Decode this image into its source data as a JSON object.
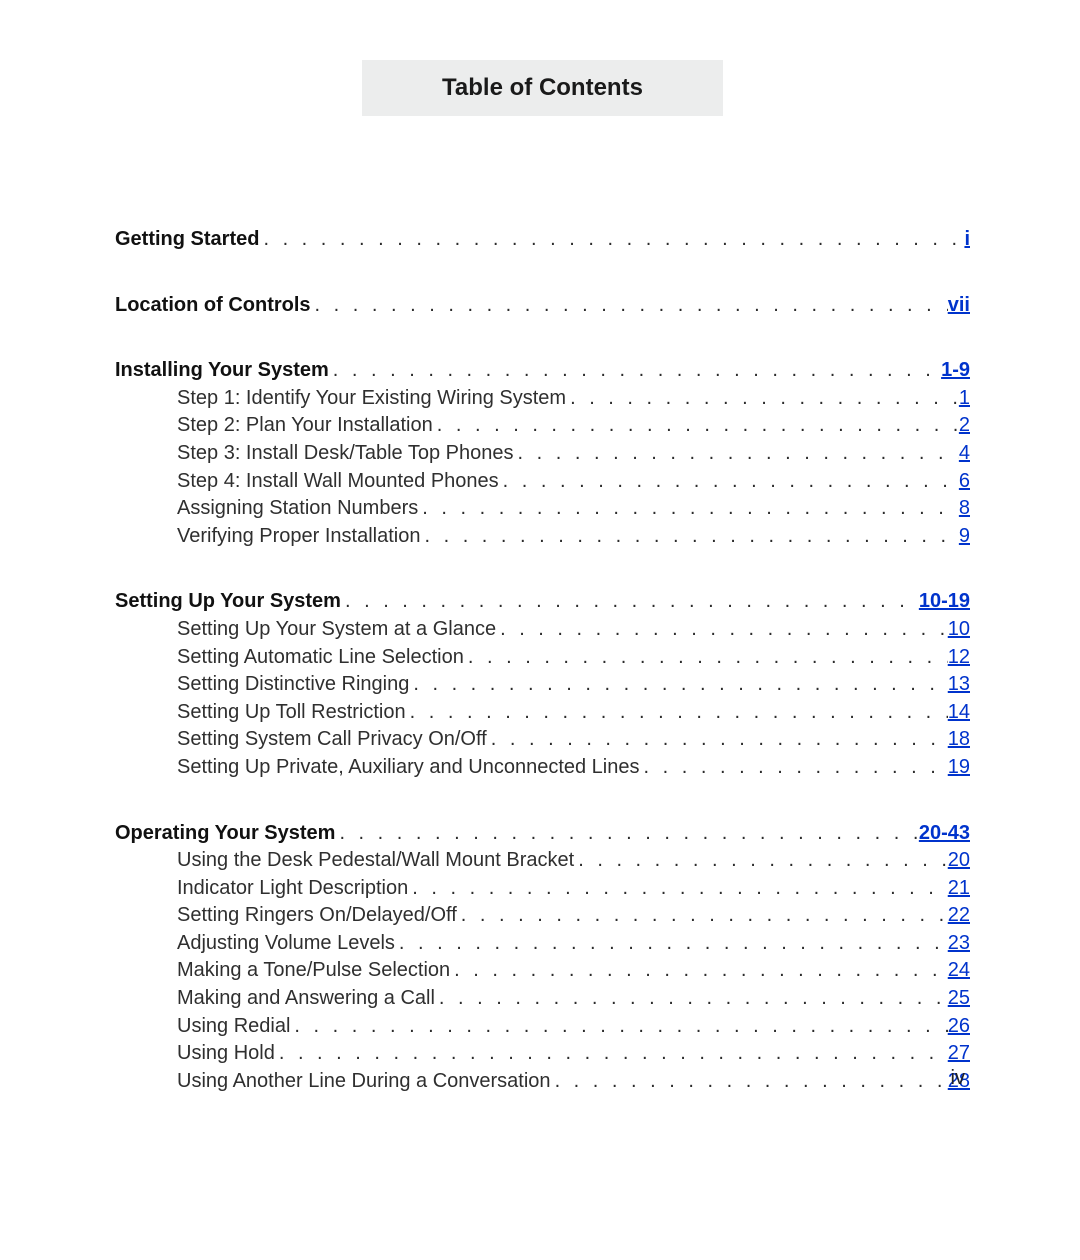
{
  "title": "Table of Contents",
  "page_number": "iv",
  "sections": [
    {
      "head": {
        "label": "Getting Started",
        "page": "i"
      },
      "items": []
    },
    {
      "head": {
        "label": "Location of Controls",
        "page": "vii"
      },
      "items": []
    },
    {
      "head": {
        "label": "Installing Your System",
        "page": "1-9"
      },
      "items": [
        {
          "label": "Step 1: Identify Your Existing Wiring System",
          "page": "1"
        },
        {
          "label": "Step 2: Plan Your Installation",
          "page": "2"
        },
        {
          "label": "Step 3: Install Desk/Table Top Phones",
          "page": "4"
        },
        {
          "label": "Step 4: Install Wall Mounted Phones",
          "page": "6"
        },
        {
          "label": "Assigning Station Numbers",
          "page": "8"
        },
        {
          "label": "Verifying Proper Installation",
          "page": "9"
        }
      ]
    },
    {
      "head": {
        "label": "Setting Up Your System",
        "page": "10-19"
      },
      "items": [
        {
          "label": "Setting Up Your System at a Glance",
          "page": "10"
        },
        {
          "label": "Setting Automatic Line Selection",
          "page": "12"
        },
        {
          "label": "Setting Distinctive Ringing",
          "page": "13"
        },
        {
          "label": "Setting Up Toll Restriction",
          "page": "14"
        },
        {
          "label": "Setting System Call Privacy On/Off",
          "page": "18"
        },
        {
          "label": "Setting Up Private, Auxiliary and Unconnected Lines",
          "page": "19"
        }
      ]
    },
    {
      "head": {
        "label": "Operating Your System",
        "page": "20-43"
      },
      "items": [
        {
          "label": "Using the Desk Pedestal/Wall Mount Bracket",
          "page": "20"
        },
        {
          "label": "Indicator Light Description",
          "page": "21"
        },
        {
          "label": "Setting Ringers On/Delayed/Off",
          "page": "22"
        },
        {
          "label": "Adjusting Volume Levels",
          "page": "23"
        },
        {
          "label": "Making a Tone/Pulse Selection",
          "page": "24"
        },
        {
          "label": "Making and Answering a Call",
          "page": "25"
        },
        {
          "label": "Using Redial",
          "page": "26"
        },
        {
          "label": "Using Hold",
          "page": "27"
        },
        {
          "label": "Using Another Line During a Conversation",
          "page": "28"
        }
      ]
    }
  ]
}
